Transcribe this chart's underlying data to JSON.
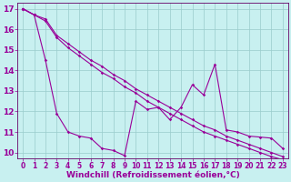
{
  "xlabel": "Windchill (Refroidissement éolien,°C)",
  "bg_color": "#c8f0f0",
  "line_color": "#990099",
  "xlim": [
    -0.5,
    23.5
  ],
  "ylim": [
    9.7,
    17.3
  ],
  "yticks": [
    10,
    11,
    12,
    13,
    14,
    15,
    16,
    17
  ],
  "xticks": [
    0,
    1,
    2,
    3,
    4,
    5,
    6,
    7,
    8,
    9,
    10,
    11,
    12,
    13,
    14,
    15,
    16,
    17,
    18,
    19,
    20,
    21,
    22,
    23
  ],
  "line1_x": [
    0,
    1,
    2,
    3,
    4,
    5,
    6,
    7,
    8,
    9,
    10,
    11,
    12,
    13,
    14,
    15,
    16,
    17,
    18,
    19,
    20,
    21,
    22,
    23
  ],
  "line1_y": [
    17.0,
    16.7,
    16.5,
    15.7,
    15.3,
    14.9,
    14.5,
    14.2,
    13.8,
    13.5,
    13.1,
    12.8,
    12.5,
    12.2,
    11.9,
    11.6,
    11.3,
    11.1,
    10.8,
    10.6,
    10.4,
    10.2,
    10.0,
    9.8
  ],
  "line2_x": [
    0,
    1,
    2,
    3,
    4,
    5,
    6,
    7,
    8,
    9,
    10,
    11,
    12,
    13,
    14,
    15,
    16,
    17,
    18,
    19,
    20,
    21,
    22,
    23
  ],
  "line2_y": [
    17.0,
    16.7,
    16.4,
    15.6,
    15.1,
    14.7,
    14.3,
    13.9,
    13.6,
    13.2,
    12.9,
    12.5,
    12.2,
    11.9,
    11.6,
    11.3,
    11.0,
    10.8,
    10.6,
    10.4,
    10.2,
    10.0,
    9.8,
    9.65
  ],
  "line3_x": [
    0,
    1,
    2,
    3,
    4,
    5,
    6,
    7,
    8,
    9,
    10,
    11,
    12,
    13,
    14,
    15,
    16,
    17,
    18,
    19,
    20,
    21,
    22,
    23
  ],
  "line3_y": [
    17.0,
    16.7,
    14.5,
    11.9,
    11.0,
    10.8,
    10.7,
    10.2,
    10.1,
    9.85,
    12.5,
    12.1,
    12.2,
    11.6,
    12.2,
    13.3,
    12.8,
    14.3,
    11.1,
    11.0,
    10.8,
    10.75,
    10.7,
    10.2
  ],
  "grid_color": "#99cccc",
  "marker": "D",
  "markersize": 1.8,
  "linewidth": 0.8,
  "fontsize_xlabel": 6.5,
  "fontsize_yticks": 6.5,
  "fontsize_xticks": 5.5,
  "spine_color": "#660066"
}
